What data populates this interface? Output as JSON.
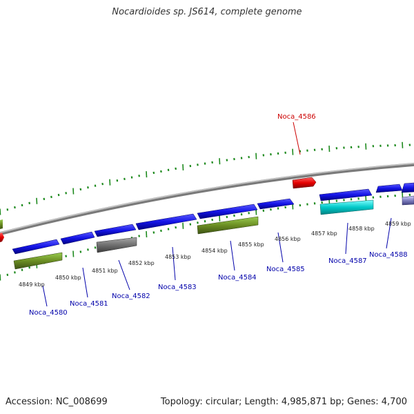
{
  "title": "Nocardioides sp. JS614, complete genome",
  "footer": {
    "accession": "Accession: NC_008699",
    "summary": "Topology: circular; Length: 4,985,871 bp; Genes: 4,700"
  },
  "colors": {
    "backbone": "#8c8c8c",
    "ticks": "#1e8a1e",
    "forward_gene": "#1414e6",
    "reverse_gene": "#6b8e23",
    "rna_gene": "#e60000",
    "other_gene_gray": "#707070",
    "other_gene_cyan": "#00c8c8",
    "label_blue": "#0000aa",
    "label_red": "#cc0000"
  },
  "kbp_labels": [
    "4849 kbp",
    "4850 kbp",
    "4851 kbp",
    "4852 kbp",
    "4853 kbp",
    "4854 kbp",
    "4855 kbp",
    "4856 kbp",
    "4857 kbp",
    "4858 kbp",
    "4859 kbp"
  ],
  "gene_labels": [
    {
      "id": "g4580",
      "text": "Noca_4580",
      "color": "label_blue"
    },
    {
      "id": "g4581",
      "text": "Noca_4581",
      "color": "label_blue"
    },
    {
      "id": "g4582",
      "text": "Noca_4582",
      "color": "label_blue"
    },
    {
      "id": "g4583",
      "text": "Noca_4583",
      "color": "label_blue"
    },
    {
      "id": "g4584",
      "text": "Noca_4584",
      "color": "label_blue"
    },
    {
      "id": "g4585",
      "text": "Noca_4585",
      "color": "label_blue"
    },
    {
      "id": "g4586",
      "text": "Noca_4586",
      "color": "label_red"
    },
    {
      "id": "g4587",
      "text": "Noca_4587",
      "color": "label_blue"
    },
    {
      "id": "g4588",
      "text": "Noca_4588",
      "color": "label_blue"
    }
  ]
}
